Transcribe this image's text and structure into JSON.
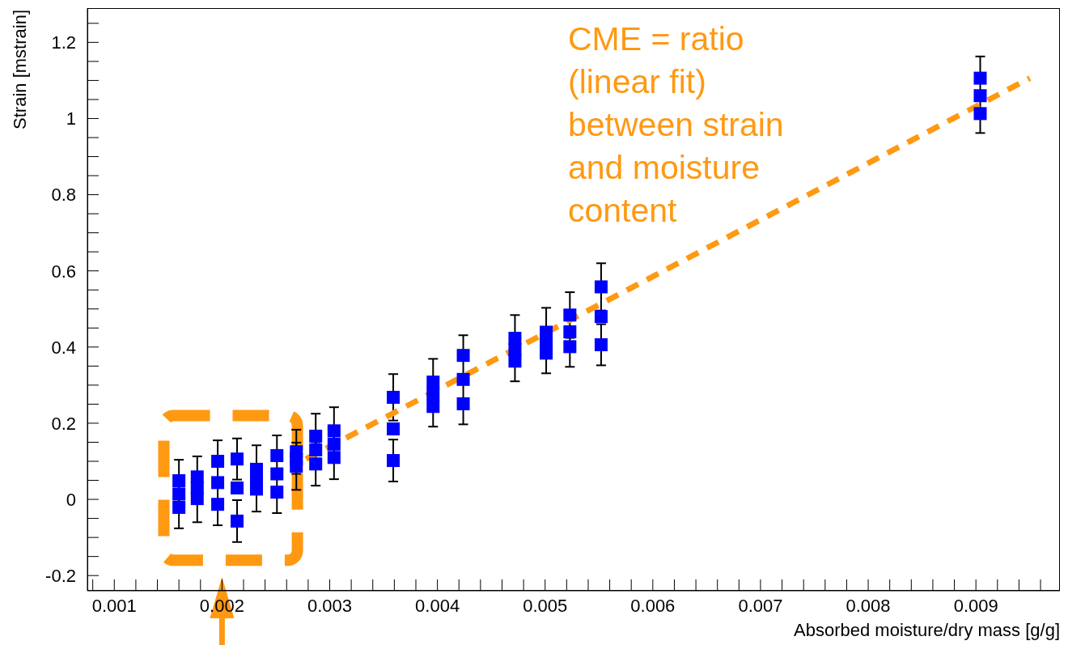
{
  "chart_data": {
    "type": "scatter",
    "xlabel": "Absorbed moisture/dry mass [g/g]",
    "ylabel": "Strain [mstrain]",
    "annotations": [
      "CME = ratio\n(linear fit)\nbetween strain\nand moisture\ncontent"
    ],
    "xlim": [
      0.00075,
      0.00978
    ],
    "ylim": [
      -0.24,
      1.29
    ],
    "xticks": [
      {
        "value": 0.0008,
        "label": null
      },
      0.001,
      {
        "value": 0.0012,
        "label": null
      },
      {
        "value": 0.0014,
        "label": null
      },
      {
        "value": 0.0016,
        "label": null
      },
      {
        "value": 0.0018,
        "label": null
      },
      0.002,
      {
        "value": 0.0022,
        "label": null
      },
      {
        "value": 0.0024,
        "label": null
      },
      {
        "value": 0.0026,
        "label": null
      },
      {
        "value": 0.0028,
        "label": null
      },
      0.003,
      {
        "value": 0.0032,
        "label": null
      },
      {
        "value": 0.0034,
        "label": null
      },
      {
        "value": 0.0036,
        "label": null
      },
      {
        "value": 0.0038,
        "label": null
      },
      0.004,
      {
        "value": 0.0042,
        "label": null
      },
      {
        "value": 0.0044,
        "label": null
      },
      {
        "value": 0.0046,
        "label": null
      },
      {
        "value": 0.0048,
        "label": null
      },
      0.005,
      {
        "value": 0.0052,
        "label": null
      },
      {
        "value": 0.0054,
        "label": null
      },
      {
        "value": 0.0056,
        "label": null
      },
      {
        "value": 0.0058,
        "label": null
      },
      0.006,
      {
        "value": 0.0062,
        "label": null
      },
      {
        "value": 0.0064,
        "label": null
      },
      {
        "value": 0.0066,
        "label": null
      },
      {
        "value": 0.0068,
        "label": null
      },
      0.007,
      {
        "value": 0.0072,
        "label": null
      },
      {
        "value": 0.0074,
        "label": null
      },
      {
        "value": 0.0076,
        "label": null
      },
      {
        "value": 0.0078,
        "label": null
      },
      0.008,
      {
        "value": 0.0082,
        "label": null
      },
      {
        "value": 0.0084,
        "label": null
      },
      {
        "value": 0.0086,
        "label": null
      },
      {
        "value": 0.0088,
        "label": null
      },
      0.009,
      {
        "value": 0.0092,
        "label": null
      },
      {
        "value": 0.0094,
        "label": null
      },
      {
        "value": 0.0096,
        "label": null
      }
    ],
    "yticks": [
      -0.2,
      {
        "value": -0.15,
        "label": null
      },
      {
        "value": -0.1,
        "label": null
      },
      {
        "value": -0.05,
        "label": null
      },
      0,
      {
        "value": 0.05,
        "label": null
      },
      {
        "value": 0.1,
        "label": null
      },
      {
        "value": 0.15,
        "label": null
      },
      0.2,
      {
        "value": 0.25,
        "label": null
      },
      {
        "value": 0.3,
        "label": null
      },
      {
        "value": 0.35,
        "label": null
      },
      0.4,
      {
        "value": 0.45,
        "label": null
      },
      {
        "value": 0.5,
        "label": null
      },
      {
        "value": 0.55,
        "label": null
      },
      0.6,
      {
        "value": 0.65,
        "label": null
      },
      {
        "value": 0.7,
        "label": null
      },
      {
        "value": 0.75,
        "label": null
      },
      0.8,
      {
        "value": 0.85,
        "label": null
      },
      {
        "value": 0.9,
        "label": null
      },
      {
        "value": 0.95,
        "label": null
      },
      1,
      {
        "value": 1.05,
        "label": null
      },
      {
        "value": 1.1,
        "label": null
      },
      {
        "value": 1.15,
        "label": null
      },
      1.2,
      {
        "value": 1.25,
        "label": null
      }
    ],
    "series": [
      {
        "marker": "square",
        "color": "#0000ff",
        "x": [
          0.0016,
          0.0016,
          0.0016,
          0.00177,
          0.00177,
          0.00177,
          0.00196,
          0.00196,
          0.00196,
          0.00214,
          0.00214,
          0.00214,
          0.00232,
          0.00232,
          0.00232,
          0.00251,
          0.00251,
          0.00251,
          0.00269,
          0.00269,
          0.00269,
          0.00287,
          0.00287,
          0.00287,
          0.00304,
          0.00304,
          0.00304,
          0.00359,
          0.00359,
          0.00359,
          0.00396,
          0.00396,
          0.00396,
          0.00424,
          0.00424,
          0.00424,
          0.00472,
          0.00472,
          0.00472,
          0.00501,
          0.00501,
          0.00501,
          0.00523,
          0.00523,
          0.00523,
          0.00552,
          0.00552,
          0.00552,
          0.00904,
          0.00904,
          0.00904
        ],
        "values": [
          0.049,
          0.014,
          -0.021,
          0.059,
          0.03,
          0.002,
          0.1,
          0.044,
          -0.013,
          0.106,
          0.03,
          -0.057,
          0.079,
          0.053,
          0.027,
          0.115,
          0.067,
          0.019,
          0.125,
          0.106,
          0.087,
          0.166,
          0.13,
          0.093,
          0.18,
          0.145,
          0.11,
          0.268,
          0.185,
          0.102,
          0.308,
          0.276,
          0.244,
          0.378,
          0.315,
          0.251,
          0.423,
          0.393,
          0.363,
          0.439,
          0.41,
          0.384,
          0.484,
          0.44,
          0.401,
          0.558,
          0.48,
          0.406,
          1.106,
          1.06,
          1.013
        ],
        "errors": [
          0.055,
          null,
          0.055,
          0.054,
          null,
          0.062,
          0.055,
          null,
          0.055,
          0.054,
          null,
          0.055,
          0.063,
          null,
          0.059,
          0.053,
          null,
          0.055,
          0.058,
          null,
          0.062,
          0.059,
          null,
          0.057,
          0.062,
          null,
          0.057,
          0.061,
          null,
          0.055,
          0.061,
          null,
          0.053,
          0.053,
          null,
          0.054,
          0.061,
          null,
          0.053,
          0.064,
          null,
          0.053,
          0.06,
          null,
          0.053,
          0.062,
          null,
          0.054,
          0.057,
          null,
          0.051
        ]
      },
      {
        "type": "line",
        "color": "#ff9912",
        "line_style": "dashed",
        "x": [
          0.00278,
          0.0095
        ],
        "values": [
          0.106,
          1.106
        ]
      }
    ]
  }
}
